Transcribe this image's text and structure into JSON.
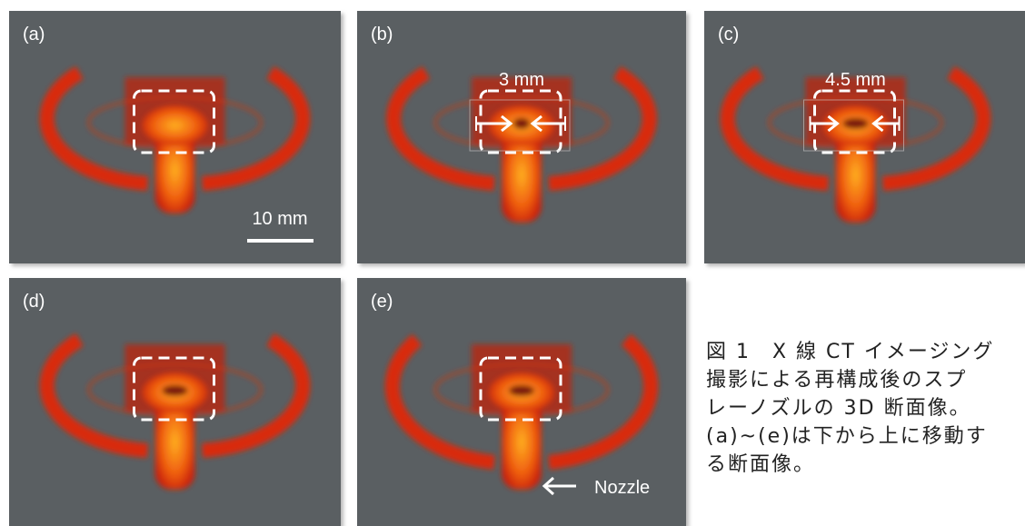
{
  "panels": [
    {
      "label": "(a)",
      "scale_bar": "10 mm"
    },
    {
      "label": "(b)",
      "dimension": "3 mm"
    },
    {
      "label": "(c)",
      "dimension": "4.5 mm"
    },
    {
      "label": "(d)"
    },
    {
      "label": "(e)",
      "pointer": "Nozzle"
    }
  ],
  "caption": {
    "lines": [
      "図 1　X 線 CT イメージング",
      "撮影による再構成後のスプ",
      "レーノズルの 3D 断面像。",
      "(a)~(e)は下から上に移動す",
      "る断面像。"
    ]
  }
}
